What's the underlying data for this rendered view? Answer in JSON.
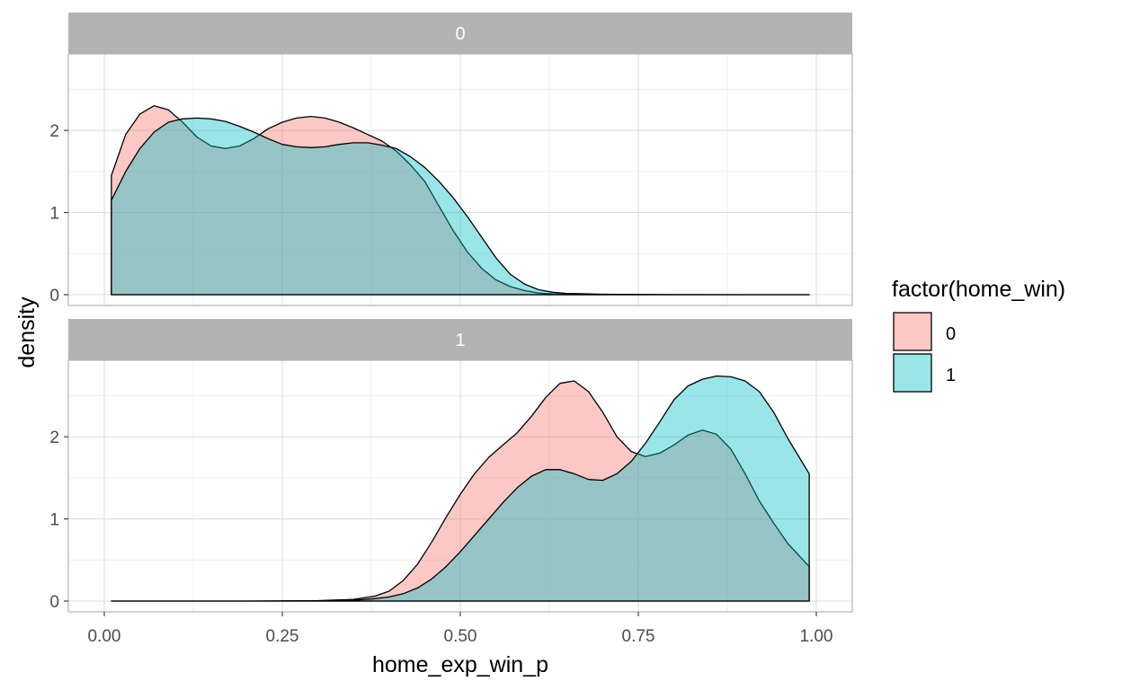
{
  "chart_data": {
    "type": "area",
    "subtype": "density",
    "facet_by": "facet",
    "xlabel": "home_exp_win_p",
    "ylabel": "density",
    "xlim": [
      0,
      1
    ],
    "ylim": [
      0,
      2.8
    ],
    "x_ticks": [
      0,
      0.25,
      0.5,
      0.75,
      1
    ],
    "x_tick_labels": [
      "0.00",
      "0.25",
      "0.50",
      "0.75",
      "1.00"
    ],
    "y_ticks": [
      0,
      1,
      2
    ],
    "y_tick_labels": [
      "0",
      "1",
      "2"
    ],
    "grid": true,
    "legend": {
      "title": "factor(home_win)",
      "position": "right",
      "entries": [
        {
          "label": "0",
          "color": "#F8766D"
        },
        {
          "label": "1",
          "color": "#00BFC4"
        }
      ]
    },
    "colors": {
      "0": "#F8766D",
      "1": "#00BFC4"
    },
    "panels": [
      {
        "strip": "0",
        "series": [
          {
            "name": "0",
            "x": [
              0.01,
              0.03,
              0.05,
              0.07,
              0.09,
              0.11,
              0.13,
              0.15,
              0.17,
              0.19,
              0.21,
              0.23,
              0.25,
              0.27,
              0.29,
              0.31,
              0.33,
              0.35,
              0.37,
              0.39,
              0.41,
              0.43,
              0.45,
              0.47,
              0.49,
              0.51,
              0.53,
              0.55,
              0.57,
              0.59,
              0.61,
              0.63,
              0.65,
              0.7,
              0.75,
              0.8,
              0.9,
              0.99
            ],
            "y": [
              1.45,
              1.95,
              2.2,
              2.3,
              2.25,
              2.1,
              1.92,
              1.81,
              1.78,
              1.81,
              1.9,
              2.02,
              2.1,
              2.15,
              2.17,
              2.15,
              2.1,
              2.03,
              1.95,
              1.87,
              1.75,
              1.58,
              1.38,
              1.08,
              0.78,
              0.52,
              0.32,
              0.18,
              0.1,
              0.05,
              0.02,
              0.01,
              0.005,
              0.002,
              0.001,
              0,
              0,
              0
            ]
          },
          {
            "name": "1",
            "x": [
              0.01,
              0.03,
              0.05,
              0.07,
              0.09,
              0.11,
              0.13,
              0.15,
              0.17,
              0.19,
              0.21,
              0.23,
              0.25,
              0.27,
              0.29,
              0.31,
              0.33,
              0.35,
              0.37,
              0.39,
              0.41,
              0.43,
              0.45,
              0.47,
              0.49,
              0.51,
              0.53,
              0.55,
              0.57,
              0.59,
              0.61,
              0.63,
              0.65,
              0.7,
              0.75,
              0.8,
              0.9,
              0.99
            ],
            "y": [
              1.15,
              1.5,
              1.78,
              1.98,
              2.1,
              2.14,
              2.15,
              2.14,
              2.11,
              2.05,
              1.98,
              1.9,
              1.83,
              1.8,
              1.79,
              1.8,
              1.83,
              1.85,
              1.85,
              1.82,
              1.78,
              1.68,
              1.55,
              1.38,
              1.18,
              0.95,
              0.7,
              0.45,
              0.25,
              0.13,
              0.06,
              0.03,
              0.015,
              0.005,
              0.002,
              0.001,
              0,
              0
            ]
          }
        ]
      },
      {
        "strip": "1",
        "series": [
          {
            "name": "0",
            "x": [
              0.01,
              0.1,
              0.2,
              0.3,
              0.35,
              0.38,
              0.4,
              0.42,
              0.44,
              0.46,
              0.48,
              0.5,
              0.52,
              0.54,
              0.56,
              0.58,
              0.6,
              0.62,
              0.64,
              0.66,
              0.68,
              0.7,
              0.72,
              0.74,
              0.76,
              0.78,
              0.8,
              0.82,
              0.84,
              0.86,
              0.88,
              0.9,
              0.92,
              0.94,
              0.96,
              0.99
            ],
            "y": [
              0,
              0,
              0,
              0.005,
              0.02,
              0.06,
              0.12,
              0.25,
              0.45,
              0.72,
              1.02,
              1.3,
              1.55,
              1.75,
              1.9,
              2.05,
              2.25,
              2.48,
              2.65,
              2.68,
              2.55,
              2.3,
              2.0,
              1.82,
              1.76,
              1.8,
              1.9,
              2.02,
              2.08,
              2.03,
              1.85,
              1.55,
              1.22,
              0.95,
              0.7,
              0.42
            ]
          },
          {
            "name": "1",
            "x": [
              0.01,
              0.1,
              0.2,
              0.3,
              0.35,
              0.38,
              0.4,
              0.42,
              0.44,
              0.46,
              0.48,
              0.5,
              0.52,
              0.54,
              0.56,
              0.58,
              0.6,
              0.62,
              0.64,
              0.66,
              0.68,
              0.7,
              0.72,
              0.74,
              0.76,
              0.78,
              0.8,
              0.82,
              0.84,
              0.86,
              0.88,
              0.9,
              0.92,
              0.94,
              0.96,
              0.99
            ],
            "y": [
              0,
              0,
              0,
              0,
              0.01,
              0.03,
              0.05,
              0.09,
              0.16,
              0.27,
              0.42,
              0.6,
              0.8,
              1.0,
              1.2,
              1.38,
              1.52,
              1.6,
              1.6,
              1.55,
              1.48,
              1.47,
              1.55,
              1.7,
              1.92,
              2.18,
              2.45,
              2.62,
              2.7,
              2.74,
              2.73,
              2.68,
              2.55,
              2.3,
              1.98,
              1.55
            ]
          }
        ]
      }
    ]
  }
}
